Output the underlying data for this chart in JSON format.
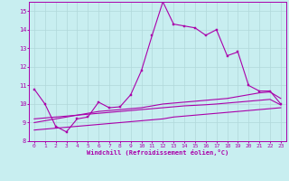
{
  "xlabel": "Windchill (Refroidissement éolien,°C)",
  "background_color": "#c8eef0",
  "grid_color": "#b0d8da",
  "line_color": "#aa00aa",
  "x_values": [
    0,
    1,
    2,
    3,
    4,
    5,
    6,
    7,
    8,
    9,
    10,
    11,
    12,
    13,
    14,
    15,
    16,
    17,
    18,
    19,
    20,
    21,
    22,
    23
  ],
  "line1": [
    10.8,
    10.0,
    8.8,
    8.5,
    9.2,
    9.3,
    10.1,
    9.8,
    9.85,
    10.5,
    11.8,
    13.7,
    15.5,
    14.3,
    14.2,
    14.1,
    13.7,
    14.0,
    12.6,
    12.8,
    11.0,
    10.7,
    10.7,
    10.0
  ],
  "line2": [
    9.0,
    9.1,
    9.2,
    9.3,
    9.4,
    9.5,
    9.6,
    9.65,
    9.7,
    9.75,
    9.8,
    9.9,
    10.0,
    10.05,
    10.1,
    10.15,
    10.2,
    10.25,
    10.3,
    10.4,
    10.5,
    10.6,
    10.65,
    10.3
  ],
  "line3": [
    9.2,
    9.25,
    9.3,
    9.35,
    9.4,
    9.45,
    9.5,
    9.55,
    9.6,
    9.65,
    9.7,
    9.75,
    9.8,
    9.85,
    9.9,
    9.93,
    9.96,
    10.0,
    10.05,
    10.1,
    10.15,
    10.2,
    10.25,
    9.95
  ],
  "line4": [
    8.6,
    8.65,
    8.7,
    8.75,
    8.8,
    8.85,
    8.9,
    8.95,
    9.0,
    9.05,
    9.1,
    9.15,
    9.2,
    9.3,
    9.35,
    9.4,
    9.45,
    9.5,
    9.55,
    9.6,
    9.65,
    9.7,
    9.75,
    9.8
  ],
  "ylim": [
    8.0,
    15.5
  ],
  "xlim": [
    -0.5,
    23.5
  ],
  "yticks": [
    8,
    9,
    10,
    11,
    12,
    13,
    14,
    15
  ],
  "xticks": [
    0,
    1,
    2,
    3,
    4,
    5,
    6,
    7,
    8,
    9,
    10,
    11,
    12,
    13,
    14,
    15,
    16,
    17,
    18,
    19,
    20,
    21,
    22,
    23
  ]
}
